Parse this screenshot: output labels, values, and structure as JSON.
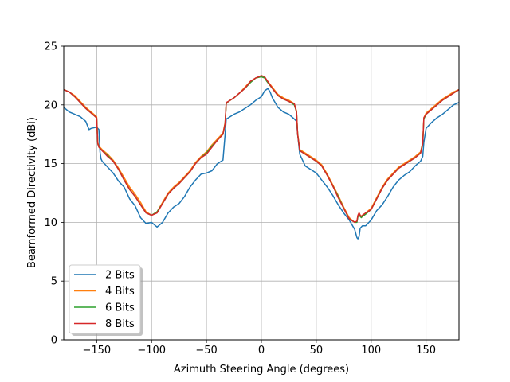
{
  "chart_data": {
    "type": "line",
    "title": "",
    "xlabel": "Azimuth Steering Angle (degrees)",
    "ylabel": "Beamformed Directivity (dBi)",
    "xlim": [
      -180,
      180
    ],
    "ylim": [
      0,
      25
    ],
    "xticks": [
      -150,
      -100,
      -50,
      0,
      50,
      100,
      150
    ],
    "xtick_labels": [
      "−150",
      "−100",
      "−50",
      "0",
      "50",
      "100",
      "150"
    ],
    "yticks": [
      0,
      5,
      10,
      15,
      20,
      25
    ],
    "ytick_labels": [
      "0",
      "5",
      "10",
      "15",
      "20",
      "25"
    ],
    "grid": true,
    "legend_position": "lower-left",
    "series": [
      {
        "name": "2 Bits",
        "color": "#1f77b4",
        "x": [
          -180,
          -175,
          -170,
          -165,
          -160,
          -157,
          -155,
          -150,
          -148,
          -147,
          -146,
          -145,
          -140,
          -135,
          -130,
          -125,
          -120,
          -115,
          -110,
          -105,
          -100,
          -95,
          -90,
          -85,
          -80,
          -75,
          -70,
          -65,
          -60,
          -55,
          -50,
          -45,
          -40,
          -35,
          -33,
          -32,
          -30,
          -25,
          -20,
          -15,
          -10,
          -5,
          0,
          3,
          6,
          8,
          10,
          15,
          20,
          25,
          30,
          32,
          33,
          35,
          40,
          45,
          50,
          55,
          60,
          65,
          70,
          75,
          80,
          85,
          87,
          88,
          89,
          90,
          92,
          95,
          100,
          105,
          110,
          115,
          120,
          125,
          130,
          135,
          140,
          145,
          147,
          148,
          150,
          155,
          160,
          165,
          170,
          175,
          180
        ],
        "values": [
          19.8,
          19.4,
          19.2,
          19.0,
          18.6,
          17.9,
          18.0,
          18.1,
          17.9,
          16.0,
          15.4,
          15.2,
          14.7,
          14.2,
          13.5,
          13.0,
          12.0,
          11.4,
          10.4,
          9.9,
          10.0,
          9.6,
          10.0,
          10.8,
          11.3,
          11.6,
          12.2,
          13.0,
          13.6,
          14.1,
          14.2,
          14.4,
          15.0,
          15.3,
          17.5,
          18.8,
          18.9,
          19.2,
          19.4,
          19.7,
          20.0,
          20.4,
          20.7,
          21.2,
          21.4,
          21.1,
          20.6,
          19.8,
          19.4,
          19.2,
          18.8,
          18.6,
          17.5,
          15.8,
          14.8,
          14.5,
          14.2,
          13.6,
          13.0,
          12.3,
          11.5,
          10.8,
          10.2,
          9.4,
          8.7,
          8.6,
          8.8,
          9.5,
          9.7,
          9.7,
          10.2,
          11.0,
          11.5,
          12.2,
          13.0,
          13.6,
          14.0,
          14.3,
          14.8,
          15.2,
          15.6,
          16.8,
          18.0,
          18.5,
          18.9,
          19.2,
          19.6,
          20.0,
          20.2
        ]
      },
      {
        "name": "4 Bits",
        "color": "#ff7f0e",
        "x": [
          -180,
          -175,
          -170,
          -165,
          -160,
          -155,
          -150,
          -149,
          -148,
          -145,
          -140,
          -135,
          -130,
          -125,
          -120,
          -115,
          -110,
          -105,
          -100,
          -95,
          -90,
          -85,
          -80,
          -75,
          -70,
          -65,
          -60,
          -55,
          -50,
          -45,
          -40,
          -35,
          -33,
          -32,
          -30,
          -25,
          -20,
          -15,
          -10,
          -5,
          0,
          3,
          5,
          10,
          15,
          20,
          25,
          30,
          32,
          33,
          35,
          40,
          45,
          50,
          55,
          60,
          65,
          70,
          75,
          80,
          85,
          87,
          88,
          89,
          90,
          91,
          92,
          95,
          100,
          105,
          110,
          115,
          120,
          125,
          130,
          135,
          140,
          145,
          147,
          148,
          150,
          155,
          160,
          165,
          170,
          175,
          180
        ],
        "values": [
          21.3,
          21.1,
          20.8,
          20.3,
          19.8,
          19.4,
          19.0,
          16.8,
          16.5,
          16.2,
          15.8,
          15.3,
          14.6,
          13.8,
          13.0,
          12.4,
          11.7,
          10.9,
          10.6,
          10.9,
          11.7,
          12.5,
          13.0,
          13.4,
          13.9,
          14.4,
          15.1,
          15.6,
          16.0,
          16.6,
          17.1,
          17.6,
          18.5,
          20.1,
          20.3,
          20.6,
          21.0,
          21.5,
          22.0,
          22.3,
          22.4,
          22.3,
          22.1,
          21.5,
          20.9,
          20.6,
          20.4,
          20.1,
          19.5,
          17.6,
          16.2,
          15.9,
          15.6,
          15.3,
          14.9,
          14.1,
          13.2,
          12.3,
          11.3,
          10.4,
          10.0,
          10.1,
          10.6,
          10.8,
          10.6,
          10.5,
          10.6,
          10.8,
          11.2,
          12.1,
          13.0,
          13.7,
          14.2,
          14.7,
          15.0,
          15.3,
          15.6,
          16.0,
          16.8,
          18.9,
          19.3,
          19.7,
          20.1,
          20.5,
          20.8,
          21.1,
          21.3
        ]
      },
      {
        "name": "6 Bits",
        "color": "#2ca02c",
        "x": [
          -180,
          -175,
          -170,
          -165,
          -160,
          -155,
          -150,
          -149,
          -148,
          -145,
          -140,
          -135,
          -130,
          -125,
          -120,
          -115,
          -110,
          -105,
          -100,
          -95,
          -90,
          -85,
          -80,
          -75,
          -70,
          -65,
          -60,
          -55,
          -50,
          -45,
          -40,
          -35,
          -33,
          -32,
          -30,
          -25,
          -20,
          -15,
          -10,
          -5,
          0,
          3,
          5,
          10,
          15,
          20,
          25,
          30,
          32,
          33,
          35,
          40,
          45,
          50,
          55,
          60,
          65,
          70,
          75,
          80,
          85,
          87,
          88,
          89,
          90,
          91,
          92,
          95,
          100,
          105,
          110,
          115,
          120,
          125,
          130,
          135,
          140,
          145,
          147,
          148,
          150,
          155,
          160,
          165,
          170,
          175,
          180
        ],
        "values": [
          21.3,
          21.1,
          20.7,
          20.2,
          19.7,
          19.3,
          18.9,
          16.7,
          16.4,
          16.1,
          15.7,
          15.2,
          14.5,
          13.6,
          12.8,
          12.2,
          11.5,
          10.8,
          10.6,
          10.9,
          11.6,
          12.4,
          12.9,
          13.3,
          13.8,
          14.3,
          15.0,
          15.5,
          15.9,
          16.5,
          17.0,
          17.5,
          18.4,
          20.1,
          20.3,
          20.6,
          21.0,
          21.4,
          21.9,
          22.3,
          22.4,
          22.3,
          22.0,
          21.4,
          20.8,
          20.5,
          20.3,
          20.0,
          19.4,
          17.5,
          16.1,
          15.8,
          15.5,
          15.2,
          14.8,
          14.0,
          13.1,
          12.2,
          11.2,
          10.3,
          10.0,
          10.0,
          10.5,
          10.7,
          10.5,
          10.4,
          10.5,
          10.7,
          11.1,
          12.0,
          12.9,
          13.6,
          14.1,
          14.6,
          14.9,
          15.2,
          15.5,
          15.9,
          16.7,
          18.8,
          19.2,
          19.6,
          20.0,
          20.4,
          20.7,
          21.0,
          21.3
        ]
      },
      {
        "name": "8 Bits",
        "color": "#d62728",
        "x": [
          -180,
          -175,
          -170,
          -165,
          -160,
          -155,
          -150,
          -149,
          -148,
          -145,
          -140,
          -135,
          -130,
          -125,
          -120,
          -115,
          -110,
          -105,
          -100,
          -95,
          -90,
          -85,
          -80,
          -75,
          -70,
          -65,
          -60,
          -55,
          -50,
          -45,
          -40,
          -35,
          -33,
          -32,
          -30,
          -25,
          -20,
          -15,
          -10,
          -5,
          0,
          3,
          5,
          10,
          15,
          20,
          25,
          30,
          32,
          33,
          35,
          40,
          45,
          50,
          55,
          60,
          65,
          70,
          75,
          80,
          85,
          87,
          88,
          89,
          90,
          91,
          92,
          95,
          100,
          105,
          110,
          115,
          120,
          125,
          130,
          135,
          140,
          145,
          147,
          148,
          150,
          155,
          160,
          165,
          170,
          175,
          180
        ],
        "values": [
          21.3,
          21.1,
          20.7,
          20.2,
          19.7,
          19.3,
          18.9,
          16.7,
          16.4,
          16.1,
          15.6,
          15.2,
          14.5,
          13.6,
          12.8,
          12.2,
          11.5,
          10.8,
          10.6,
          10.8,
          11.6,
          12.4,
          12.9,
          13.3,
          13.8,
          14.3,
          15.0,
          15.5,
          15.8,
          16.4,
          17.0,
          17.5,
          18.4,
          20.2,
          20.3,
          20.6,
          21.0,
          21.4,
          22.0,
          22.3,
          22.5,
          22.4,
          22.1,
          21.4,
          20.8,
          20.5,
          20.3,
          20.1,
          19.4,
          17.5,
          16.1,
          15.8,
          15.5,
          15.2,
          14.8,
          14.0,
          13.1,
          12.1,
          11.2,
          10.3,
          10.0,
          10.1,
          10.6,
          10.8,
          10.6,
          10.5,
          10.6,
          10.8,
          11.1,
          12.0,
          12.9,
          13.6,
          14.1,
          14.6,
          14.9,
          15.2,
          15.5,
          15.9,
          16.7,
          18.9,
          19.2,
          19.6,
          20.0,
          20.4,
          20.7,
          21.0,
          21.3
        ]
      }
    ]
  }
}
